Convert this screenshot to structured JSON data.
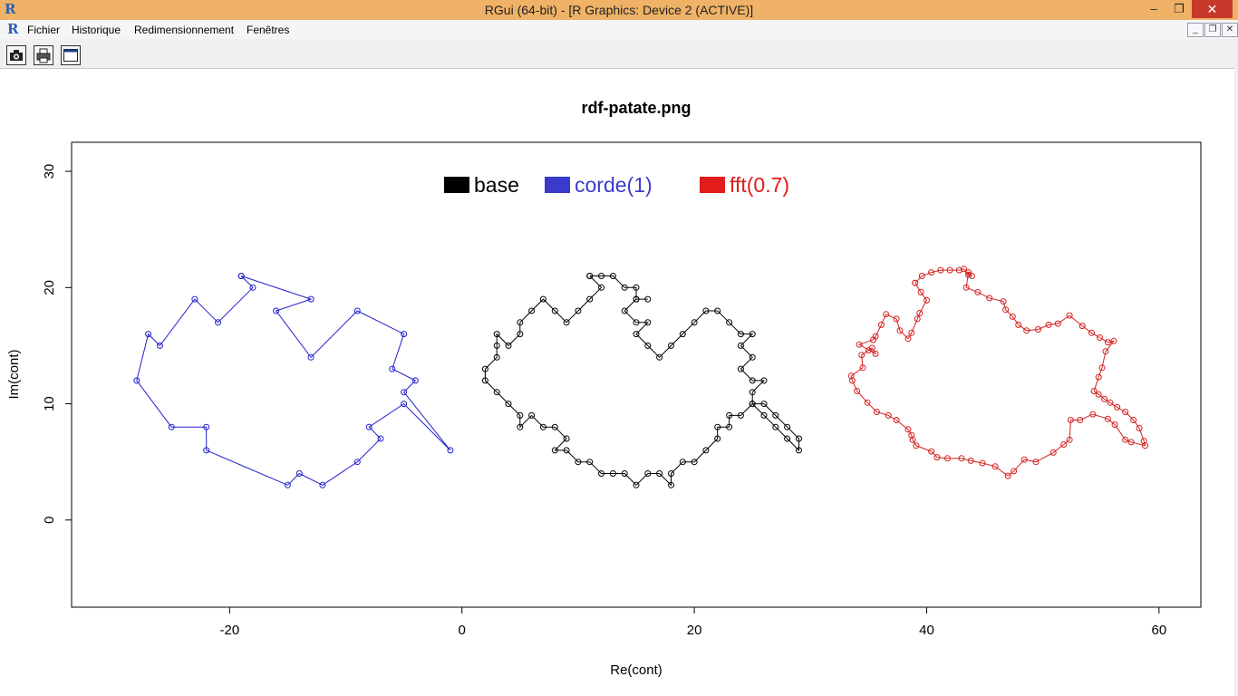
{
  "window": {
    "title": "RGui (64-bit) - [R Graphics: Device 2 (ACTIVE)]",
    "close_glyph": "✕",
    "min_glyph": "–",
    "max_glyph": "❐"
  },
  "menu": {
    "items": [
      "Fichier",
      "Historique",
      "Redimensionnement",
      "Fenêtres"
    ]
  },
  "app_icon": "R",
  "mdi": {
    "min": "_",
    "restore": "❐",
    "close": "✕"
  },
  "toolbar": {
    "buttons": [
      "camera-icon",
      "printer-icon",
      "window-icon"
    ]
  },
  "chart_data": {
    "type": "line",
    "title": "rdf-patate.png",
    "xlabel": "Re(cont)",
    "ylabel": "Im(cont)",
    "xlim": [
      -33.6,
      63.6
    ],
    "ylim": [
      -7.5,
      32.5
    ],
    "xticks": [
      -20,
      0,
      20,
      40,
      60
    ],
    "yticks": [
      0,
      10,
      20,
      30
    ],
    "grid": false,
    "legend": {
      "placement": "top-center",
      "entries": [
        {
          "name": "base",
          "color": "#000000"
        },
        {
          "name": "corde(1)",
          "color": "#3a3acc"
        },
        {
          "name": "fft(0.7)",
          "color": "#e21b1b"
        }
      ]
    },
    "series": [
      {
        "name": "base",
        "color": "#000000",
        "closed": false,
        "points": [
          [
            11,
            21
          ],
          [
            12,
            21
          ],
          [
            13,
            21
          ],
          [
            14,
            20
          ],
          [
            15,
            20
          ],
          [
            15,
            19
          ],
          [
            16,
            19
          ],
          [
            15,
            19
          ],
          [
            14,
            18
          ],
          [
            15,
            17
          ],
          [
            16,
            17
          ],
          [
            15,
            16
          ],
          [
            16,
            15
          ],
          [
            17,
            14
          ],
          [
            18,
            15
          ],
          [
            19,
            16
          ],
          [
            20,
            17
          ],
          [
            21,
            18
          ],
          [
            22,
            18
          ],
          [
            23,
            17
          ],
          [
            24,
            16
          ],
          [
            25,
            16
          ],
          [
            24,
            15
          ],
          [
            25,
            14
          ],
          [
            24,
            13
          ],
          [
            25,
            12
          ],
          [
            26,
            12
          ],
          [
            25,
            11
          ],
          [
            25,
            10
          ],
          [
            26,
            10
          ],
          [
            27,
            9
          ],
          [
            28,
            8
          ],
          [
            29,
            7
          ],
          [
            29,
            6
          ],
          [
            28,
            7
          ],
          [
            27,
            8
          ],
          [
            26,
            9
          ],
          [
            25,
            10
          ],
          [
            24,
            9
          ],
          [
            23,
            9
          ],
          [
            23,
            8
          ],
          [
            22,
            8
          ],
          [
            22,
            7
          ],
          [
            21,
            6
          ],
          [
            20,
            5
          ],
          [
            19,
            5
          ],
          [
            18,
            4
          ],
          [
            18,
            3
          ],
          [
            17,
            4
          ],
          [
            16,
            4
          ],
          [
            15,
            3
          ],
          [
            14,
            4
          ],
          [
            13,
            4
          ],
          [
            12,
            4
          ],
          [
            11,
            5
          ],
          [
            10,
            5
          ],
          [
            9,
            6
          ],
          [
            8,
            6
          ],
          [
            9,
            7
          ],
          [
            8,
            8
          ],
          [
            7,
            8
          ],
          [
            6,
            9
          ],
          [
            5,
            8
          ],
          [
            5,
            9
          ],
          [
            4,
            10
          ],
          [
            3,
            11
          ],
          [
            2,
            12
          ],
          [
            2,
            13
          ],
          [
            3,
            14
          ],
          [
            3,
            15
          ],
          [
            3,
            16
          ],
          [
            4,
            15
          ],
          [
            5,
            16
          ],
          [
            5,
            17
          ],
          [
            6,
            18
          ],
          [
            7,
            19
          ],
          [
            8,
            18
          ],
          [
            9,
            17
          ],
          [
            10,
            18
          ],
          [
            11,
            19
          ],
          [
            12,
            20
          ],
          [
            11,
            21
          ]
        ]
      },
      {
        "name": "corde(1)",
        "color": "#1f1fcc",
        "closed": false,
        "points": [
          [
            -19,
            21
          ],
          [
            -13,
            19
          ],
          [
            -16,
            18
          ],
          [
            -13,
            14
          ],
          [
            -9,
            18
          ],
          [
            -5,
            16
          ],
          [
            -6,
            13
          ],
          [
            -4,
            12
          ],
          [
            -5,
            11
          ],
          [
            -1,
            6
          ],
          [
            -5,
            10
          ],
          [
            -8,
            8
          ],
          [
            -7,
            7
          ],
          [
            -9,
            5
          ],
          [
            -12,
            3
          ],
          [
            -14,
            4
          ],
          [
            -15,
            3
          ],
          [
            -22,
            6
          ],
          [
            -22,
            8
          ],
          [
            -25,
            8
          ],
          [
            -28,
            12
          ],
          [
            -27,
            16
          ],
          [
            -26,
            15
          ],
          [
            -23,
            19
          ],
          [
            -21,
            17
          ],
          [
            -18,
            20
          ],
          [
            -19,
            21
          ]
        ]
      },
      {
        "name": "fft(0.7)",
        "color": "#d42020",
        "closed": false,
        "points": [
          [
            39,
            20.4
          ],
          [
            39.6,
            21
          ],
          [
            40.4,
            21.3
          ],
          [
            41.2,
            21.5
          ],
          [
            42,
            21.5
          ],
          [
            42.8,
            21.5
          ],
          [
            43.2,
            21.6
          ],
          [
            43.6,
            21.1
          ],
          [
            43.9,
            21
          ],
          [
            43.6,
            21.3
          ],
          [
            43.4,
            20
          ],
          [
            44.4,
            19.6
          ],
          [
            45.4,
            19.1
          ],
          [
            46.6,
            18.8
          ],
          [
            46.8,
            18.1
          ],
          [
            47.4,
            17.5
          ],
          [
            47.9,
            16.8
          ],
          [
            48.6,
            16.3
          ],
          [
            49.6,
            16.4
          ],
          [
            50.5,
            16.8
          ],
          [
            51.3,
            16.9
          ],
          [
            52.3,
            17.6
          ],
          [
            53.4,
            16.7
          ],
          [
            54.2,
            16.1
          ],
          [
            54.9,
            15.7
          ],
          [
            55.6,
            15.3
          ],
          [
            56.1,
            15.4
          ],
          [
            55.4,
            14.5
          ],
          [
            55.1,
            13.1
          ],
          [
            54.8,
            12.3
          ],
          [
            54.4,
            11.1
          ],
          [
            54.8,
            10.8
          ],
          [
            55.3,
            10.4
          ],
          [
            55.8,
            10.1
          ],
          [
            56.4,
            9.7
          ],
          [
            57.1,
            9.3
          ],
          [
            57.8,
            8.6
          ],
          [
            58.3,
            7.9
          ],
          [
            58.7,
            6.8
          ],
          [
            58.8,
            6.4
          ],
          [
            57.6,
            6.7
          ],
          [
            57.1,
            6.9
          ],
          [
            56.2,
            8.2
          ],
          [
            55.6,
            8.7
          ],
          [
            54.3,
            9.1
          ],
          [
            53.2,
            8.6
          ],
          [
            52.4,
            8.6
          ],
          [
            52.3,
            6.9
          ],
          [
            51.8,
            6.5
          ],
          [
            50.9,
            5.8
          ],
          [
            49.4,
            5
          ],
          [
            48.4,
            5.2
          ],
          [
            47.5,
            4.2
          ],
          [
            47,
            3.8
          ],
          [
            45.9,
            4.6
          ],
          [
            44.8,
            4.9
          ],
          [
            43.8,
            5.1
          ],
          [
            43,
            5.3
          ],
          [
            41.8,
            5.3
          ],
          [
            40.9,
            5.4
          ],
          [
            40.4,
            5.9
          ],
          [
            39.1,
            6.4
          ],
          [
            38.8,
            6.9
          ],
          [
            38.7,
            7.3
          ],
          [
            38.4,
            7.8
          ],
          [
            37.4,
            8.6
          ],
          [
            36.7,
            9
          ],
          [
            35.7,
            9.3
          ],
          [
            34.9,
            10.1
          ],
          [
            34,
            11.1
          ],
          [
            33.6,
            12
          ],
          [
            33.5,
            12.4
          ],
          [
            34.5,
            13.1
          ],
          [
            34.4,
            14.2
          ],
          [
            35,
            14.6
          ],
          [
            35.3,
            14.8
          ],
          [
            35.6,
            14.3
          ],
          [
            34.2,
            15.1
          ],
          [
            35.4,
            15.5
          ],
          [
            35.6,
            15.8
          ],
          [
            36.1,
            16.8
          ],
          [
            36.5,
            17.7
          ],
          [
            37.4,
            17.3
          ],
          [
            37.7,
            16.3
          ],
          [
            38.4,
            15.6
          ],
          [
            38.7,
            16.1
          ],
          [
            39.2,
            17.3
          ],
          [
            39.4,
            17.8
          ],
          [
            40,
            18.9
          ],
          [
            39.5,
            19.6
          ],
          [
            39,
            20.4
          ]
        ]
      }
    ]
  }
}
